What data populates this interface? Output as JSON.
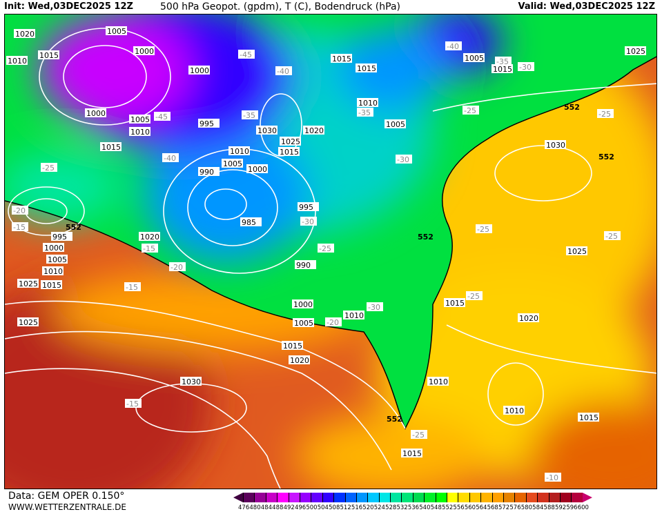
{
  "header": {
    "init": "Init: Wed,03DEC2025 12Z",
    "title": "500 hPa Geopot. (gpdm), T (C), Bodendruck (hPa)",
    "valid": "Valid: Wed,03DEC2025 12Z"
  },
  "footer": {
    "source": "Data: GEM OPER 0.150°",
    "site": "WWW.WETTERZENTRALE.DE"
  },
  "legend": {
    "labels": [
      "476",
      "480",
      "484",
      "488",
      "492",
      "496",
      "500",
      "504",
      "508",
      "512",
      "516",
      "520",
      "524",
      "528",
      "532",
      "536",
      "540",
      "548",
      "552",
      "556",
      "560",
      "564",
      "568",
      "572",
      "576",
      "580",
      "584",
      "588",
      "592",
      "596",
      "600"
    ],
    "colors": [
      "#5c005c",
      "#960096",
      "#c800c8",
      "#ff00ff",
      "#c814ff",
      "#9600ff",
      "#6400ff",
      "#3200ff",
      "#0032ff",
      "#0064ff",
      "#0096ff",
      "#00c8ff",
      "#00e6e6",
      "#00e6a0",
      "#00e678",
      "#00dc50",
      "#00f028",
      "#00ff00",
      "#ffff00",
      "#ffdc00",
      "#ffc800",
      "#ffb400",
      "#ffa000",
      "#e68200",
      "#e66400",
      "#e64b1e",
      "#d2321e",
      "#b41e1e",
      "#a0001e",
      "#b4003c"
    ],
    "left_arrow_color": "#400040",
    "right_arrow_color": "#c8006e"
  },
  "map": {
    "isobar_labels": [
      "1020",
      "1015",
      "1010",
      "1005",
      "1000",
      "1000",
      "1000",
      "1005",
      "1010",
      "1015",
      "995",
      "990",
      "1010",
      "1005",
      "1000",
      "1030",
      "1025",
      "1020",
      "1015",
      "985",
      "995",
      "990",
      "1000",
      "1005",
      "1010",
      "1015",
      "1020",
      "1015",
      "1010",
      "1005",
      "1015",
      "1005",
      "1015",
      "1025",
      "1030",
      "1025",
      "1020",
      "1015",
      "1010",
      "1010",
      "1015",
      "1025",
      "1030",
      "1025",
      "1015",
      "995",
      "1000",
      "1005",
      "1010",
      "1015",
      "1020"
    ],
    "geopot_labels": [
      "552",
      "552",
      "552",
      "552",
      "552"
    ],
    "temp_labels": [
      "-45",
      "-40",
      "-40",
      "-35",
      "-35",
      "-35",
      "-30",
      "-25",
      "-25",
      "-20",
      "-15",
      "-15",
      "-25",
      "-30",
      "-30",
      "-25",
      "-25",
      "-20",
      "-15",
      "-20",
      "-25",
      "-25",
      "-25",
      "-15",
      "-10",
      "-45",
      "-40",
      "-30"
    ]
  }
}
